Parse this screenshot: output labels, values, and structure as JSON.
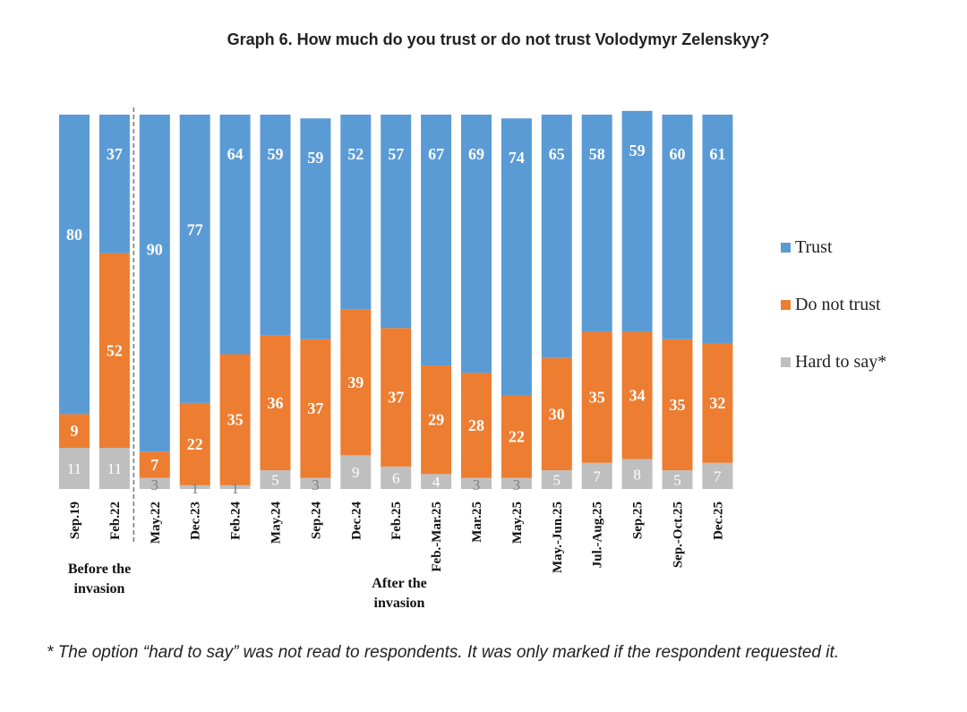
{
  "title": "Graph 6. How much do you trust or do not trust Volodymyr Zelenskyy?",
  "footnote": "* The option “hard to say” was not read to respondents. It was only marked if the respondent requested it.",
  "chart_data": {
    "type": "bar",
    "stacked": true,
    "orientation": "vertical",
    "categories": [
      "Sep.19",
      "Feb.22",
      "May.22",
      "Dec.23",
      "Feb.24",
      "May.24",
      "Sep.24",
      "Dec.24",
      "Feb.25",
      "Feb.-Mar.25",
      "Mar.25",
      "May.25",
      "May.-Jun.25",
      "Jul.-Aug.25",
      "Sep.25",
      "Sep.-Oct.25",
      "Dec.25"
    ],
    "series": [
      {
        "name": "Hard to say*",
        "color": "#bfbfbf",
        "values": [
          11,
          11,
          3,
          1,
          1,
          5,
          3,
          9,
          6,
          4,
          3,
          3,
          5,
          7,
          8,
          5,
          7
        ]
      },
      {
        "name": "Do not trust",
        "color": "#ed7d31",
        "values": [
          9,
          52,
          7,
          22,
          35,
          36,
          37,
          39,
          37,
          29,
          28,
          22,
          30,
          35,
          34,
          35,
          32
        ]
      },
      {
        "name": "Trust",
        "color": "#5b9bd5",
        "values": [
          80,
          37,
          90,
          77,
          64,
          59,
          59,
          52,
          57,
          67,
          69,
          74,
          65,
          58,
          59,
          60,
          61
        ]
      }
    ],
    "legend_order": [
      "Trust",
      "Do not trust",
      "Hard to say*"
    ],
    "legend_position": "right",
    "ylim": [
      0,
      100
    ],
    "y_axis_visible": false,
    "grid": false,
    "divider_after_index": 1,
    "annotations": [
      {
        "text_line1": "Before the",
        "text_line2": "invasion",
        "span": [
          0,
          1
        ]
      },
      {
        "text_line1": "After the",
        "text_line2": "invasion",
        "span": [
          2,
          16
        ]
      }
    ]
  }
}
